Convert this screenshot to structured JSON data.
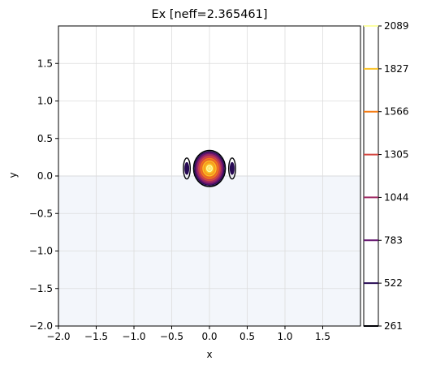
{
  "chart_data": {
    "type": "contour",
    "title": "Ex [neff=2.365461]",
    "xlabel": "x",
    "ylabel": "y",
    "xlim": [
      -2.0,
      2.0
    ],
    "ylim": [
      -2.0,
      2.0
    ],
    "xticks": [
      -2.0,
      -1.5,
      -1.0,
      -0.5,
      0.0,
      0.5,
      1.0,
      1.5
    ],
    "yticks": [
      -2.0,
      -1.5,
      -1.0,
      -0.5,
      0.0,
      0.5,
      1.0,
      1.5
    ],
    "grid": true,
    "substrate_region": {
      "x": [
        -2.0,
        2.0
      ],
      "y": [
        -2.0,
        0.0
      ],
      "color": "#f3f6fb"
    },
    "colorbar": {
      "levels": [
        261,
        522,
        783,
        1044,
        1305,
        1566,
        1827,
        2089
      ],
      "colors": [
        "#000004",
        "#280b54",
        "#65156e",
        "#9f2a63",
        "#d44842",
        "#f57d15",
        "#fac228",
        "#fcffa4"
      ],
      "position": "right"
    },
    "contours": {
      "central": {
        "center": [
          0.0,
          0.1
        ],
        "outer_semi_axes": [
          0.21,
          0.24
        ],
        "levels": [
          261,
          522,
          783,
          1044,
          1305,
          1566,
          1827,
          2089
        ]
      },
      "side_lobes": [
        {
          "center": [
            -0.3,
            0.1
          ],
          "semi_axes": [
            0.045,
            0.14
          ],
          "levels": [
            261,
            522
          ]
        },
        {
          "center": [
            0.3,
            0.1
          ],
          "semi_axes": [
            0.045,
            0.14
          ],
          "levels": [
            261,
            522
          ]
        }
      ]
    }
  }
}
